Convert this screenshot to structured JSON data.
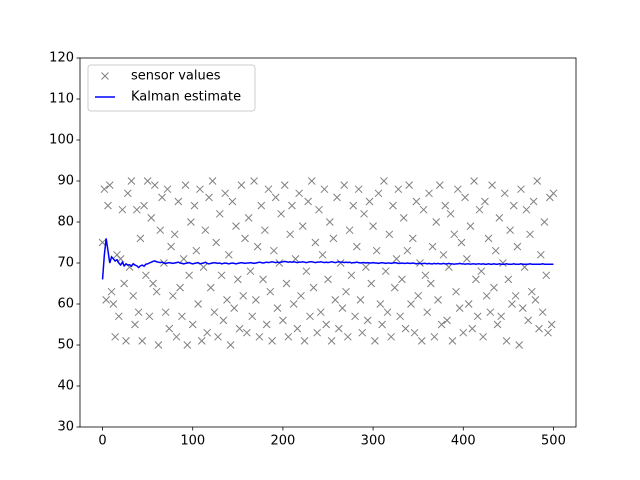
{
  "chart_data": {
    "type": "line",
    "xlim": [
      -25,
      525
    ],
    "ylim": [
      30,
      120
    ],
    "xticks": [
      0,
      100,
      200,
      300,
      400,
      500
    ],
    "yticks": [
      30,
      40,
      50,
      60,
      70,
      80,
      90,
      100,
      110,
      120
    ],
    "legend": "upper left",
    "x": [
      0,
      2,
      4,
      6,
      8,
      10,
      12,
      14,
      16,
      18,
      20,
      22,
      24,
      26,
      28,
      30,
      32,
      34,
      36,
      38,
      40,
      42,
      44,
      46,
      48,
      50,
      52,
      54,
      56,
      58,
      60,
      62,
      64,
      66,
      68,
      70,
      72,
      74,
      76,
      78,
      80,
      82,
      84,
      86,
      88,
      90,
      92,
      94,
      96,
      98,
      100,
      102,
      104,
      106,
      108,
      110,
      112,
      114,
      116,
      118,
      120,
      122,
      124,
      126,
      128,
      130,
      132,
      134,
      136,
      138,
      140,
      142,
      144,
      146,
      148,
      150,
      152,
      154,
      156,
      158,
      160,
      162,
      164,
      166,
      168,
      170,
      172,
      174,
      176,
      178,
      180,
      182,
      184,
      186,
      188,
      190,
      192,
      194,
      196,
      198,
      200,
      202,
      204,
      206,
      208,
      210,
      212,
      214,
      216,
      218,
      220,
      222,
      224,
      226,
      228,
      230,
      232,
      234,
      236,
      238,
      240,
      242,
      244,
      246,
      248,
      250,
      252,
      254,
      256,
      258,
      260,
      262,
      264,
      266,
      268,
      270,
      272,
      274,
      276,
      278,
      280,
      282,
      284,
      286,
      288,
      290,
      292,
      294,
      296,
      298,
      300,
      302,
      304,
      306,
      308,
      310,
      312,
      314,
      316,
      318,
      320,
      322,
      324,
      326,
      328,
      330,
      332,
      334,
      336,
      338,
      340,
      342,
      344,
      346,
      348,
      350,
      352,
      354,
      356,
      358,
      360,
      362,
      364,
      366,
      368,
      370,
      372,
      374,
      376,
      378,
      380,
      382,
      384,
      386,
      388,
      390,
      392,
      394,
      396,
      398,
      400,
      402,
      404,
      406,
      408,
      410,
      412,
      414,
      416,
      418,
      420,
      422,
      424,
      426,
      428,
      430,
      432,
      434,
      436,
      438,
      440,
      442,
      444,
      446,
      448,
      450,
      452,
      454,
      456,
      458,
      460,
      462,
      464,
      466,
      468,
      470,
      472,
      474,
      476,
      478,
      480,
      482,
      484,
      486,
      488,
      490,
      492,
      494,
      496,
      498,
      500
    ],
    "series": [
      {
        "name": "sensor values",
        "color": "#808080",
        "marker": "x",
        "values": [
          75,
          88,
          61,
          84,
          89,
          63,
          60,
          52,
          72,
          57,
          71,
          83,
          65,
          51,
          87,
          69,
          90,
          62,
          55,
          83,
          58,
          76,
          51,
          84,
          67,
          90,
          57,
          81,
          65,
          89,
          63,
          50,
          78,
          86,
          70,
          58,
          88,
          54,
          74,
          62,
          77,
          52,
          85,
          64,
          57,
          71,
          89,
          50,
          67,
          80,
          55,
          84,
          73,
          60,
          88,
          51,
          69,
          78,
          53,
          86,
          64,
          90,
          58,
          75,
          52,
          82,
          67,
          56,
          87,
          61,
          72,
          50,
          85,
          59,
          79,
          66,
          54,
          89,
          62,
          76,
          53,
          81,
          68,
          57,
          90,
          61,
          74,
          52,
          84,
          66,
          78,
          55,
          88,
          63,
          51,
          73,
          86,
          59,
          70,
          82,
          56,
          89,
          65,
          52,
          77,
          84,
          60,
          71,
          54,
          87,
          62,
          79,
          51,
          68,
          85,
          57,
          90,
          64,
          75,
          53,
          83,
          58,
          72,
          88,
          55,
          66,
          80,
          51,
          76,
          61,
          86,
          54,
          70,
          59,
          89,
          63,
          52,
          78,
          67,
          84,
          57,
          74,
          88,
          61,
          53,
          82,
          69,
          56,
          85,
          65,
          79,
          51,
          73,
          87,
          60,
          55,
          90,
          68,
          58,
          77,
          52,
          84,
          64,
          71,
          88,
          57,
          66,
          81,
          54,
          73,
          89,
          60,
          76,
          53,
          85,
          62,
          70,
          51,
          83,
          67,
          58,
          87,
          65,
          74,
          52,
          80,
          61,
          89,
          55,
          72,
          84,
          56,
          69,
          82,
          51,
          77,
          63,
          88,
          59,
          75,
          53,
          86,
          71,
          60,
          79,
          54,
          90,
          66,
          57,
          83,
          68,
          52,
          85,
          62,
          76,
          58,
          89,
          64,
          73,
          55,
          81,
          57,
          70,
          87,
          51,
          66,
          78,
          60,
          84,
          62,
          74,
          50,
          88,
          59,
          69,
          83,
          56,
          77,
          63,
          85,
          61,
          90,
          54,
          72,
          58,
          80,
          67,
          53,
          86,
          55,
          87
        ]
      },
      {
        "name": "Kalman estimate",
        "color": "#0000ff",
        "marker": "line",
        "values": [
          66,
          72,
          76,
          73,
          70,
          71.5,
          71,
          70.5,
          70.8,
          70,
          69.5,
          70.2,
          69.3,
          69.8,
          69.5,
          69.6,
          69.2,
          69.8,
          69.5,
          69.3,
          68.9,
          69.3,
          69.5,
          69.2,
          69.7,
          69.8,
          70,
          70.2,
          70.4,
          70.5,
          70.3,
          70.2,
          70.1,
          70.2,
          70,
          69.9,
          70,
          70.1,
          70,
          69.9,
          70,
          70.1,
          70.2,
          70,
          69.9,
          69.8,
          69.9,
          70,
          70.1,
          69.9,
          69.8,
          69.9,
          70,
          70.1,
          69.8,
          69.9,
          70,
          70.2,
          69.9,
          69.8,
          69.9,
          70,
          70.1,
          70,
          69.9,
          70,
          69.8,
          69.9,
          70,
          69.9,
          69.8,
          69.9,
          70,
          69.9,
          69.8,
          69.9,
          70,
          70.1,
          70,
          69.9,
          70,
          70,
          70.1,
          70,
          69.9,
          70,
          70.1,
          70.2,
          70.1,
          70,
          70.1,
          70.2,
          70.1,
          70.2,
          70.3,
          70.2,
          70.1,
          70.2,
          70.1,
          70.2,
          70.3,
          70.4,
          70.3,
          70.2,
          70.3,
          70.2,
          70.3,
          70.2,
          70.1,
          70.2,
          70.2,
          70.3,
          70.2,
          70.1,
          70.2,
          70.3,
          70.3,
          70.2,
          70.1,
          70.2,
          70.2,
          70.3,
          70.2,
          70.1,
          70.2,
          70.1,
          70.2,
          70.3,
          70.2,
          70.1,
          70.2,
          70.3,
          70.2,
          70.2,
          70.1,
          70.2,
          70.1,
          70.2,
          70,
          70.1,
          70.1,
          70.2,
          70.1,
          70,
          70.1,
          70.1,
          70,
          70.1,
          70,
          70,
          70.1,
          70,
          70,
          69.9,
          70,
          70.1,
          70,
          69.9,
          70,
          70,
          69.9,
          70,
          70.1,
          70,
          69.9,
          69.9,
          70,
          69.9,
          69.9,
          70,
          69.9,
          69.9,
          70,
          69.9,
          69.8,
          69.9,
          69.9,
          69.8,
          69.9,
          69.9,
          69.8,
          69.9,
          69.8,
          69.8,
          69.9,
          69.8,
          69.9,
          69.8,
          69.8,
          69.9,
          69.8,
          69.8,
          69.9,
          69.8,
          69.8,
          69.7,
          69.8,
          69.8,
          69.9,
          69.8,
          69.8,
          69.7,
          69.8,
          69.8,
          69.7,
          69.8,
          69.8,
          69.7,
          69.8,
          69.8,
          69.7,
          69.8,
          69.7,
          69.7,
          69.8,
          69.7,
          69.7,
          69.8,
          69.7,
          69.7,
          69.8,
          69.7,
          69.7,
          69.7,
          69.8,
          69.7,
          69.7,
          69.7,
          69.8,
          69.7,
          69.7,
          69.7,
          69.8,
          69.7,
          69.7,
          69.7,
          69.7,
          69.8,
          69.7,
          69.7,
          69.7,
          69.7,
          69.7,
          69.7,
          69.8,
          69.7,
          69.7,
          69.7,
          69.7,
          69.7,
          69.7
        ]
      }
    ]
  }
}
